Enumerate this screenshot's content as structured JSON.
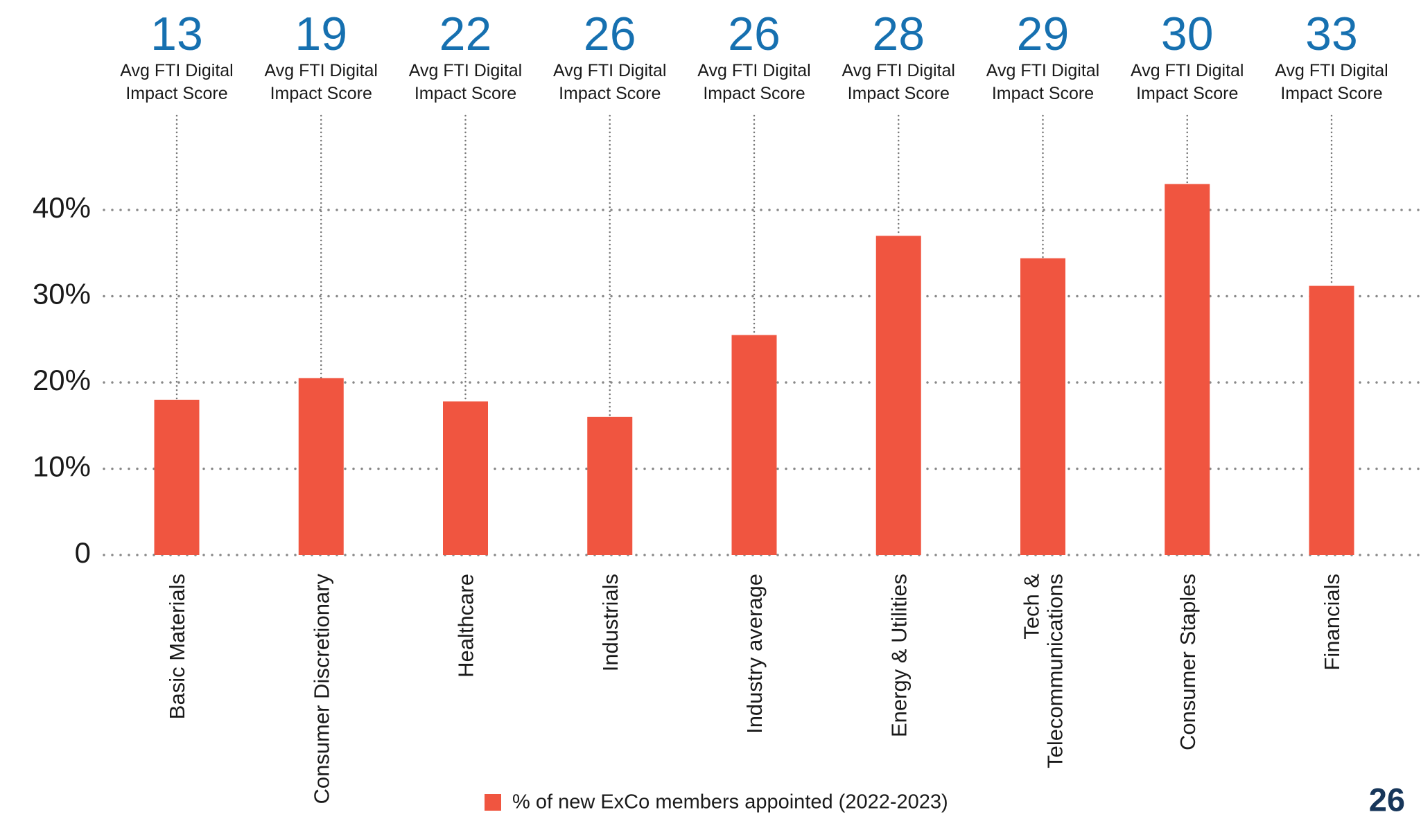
{
  "chart_data": {
    "type": "bar",
    "categories": [
      "Basic Materials",
      "Consumer Discretionary",
      "Healthcare",
      "Industrials",
      "Industry average",
      "Energy & Utilities",
      "Tech &\nTelecommunications",
      "Consumer Staples",
      "Financials"
    ],
    "values": [
      18,
      20.5,
      17.8,
      16,
      25.5,
      37,
      34.4,
      43,
      31.2
    ],
    "scores": [
      13,
      19,
      22,
      26,
      26,
      28,
      29,
      30,
      33
    ],
    "score_label": [
      "Avg FTI Digital",
      "Impact Score"
    ],
    "series_name": "% of new ExCo members appointed (2022-2023)",
    "color": "#f05540",
    "ylim": [
      0,
      40
    ],
    "yticks": [
      {
        "value": 0,
        "label": "0"
      },
      {
        "value": 10,
        "label": "10%"
      },
      {
        "value": 20,
        "label": "20%"
      },
      {
        "value": 30,
        "label": "30%"
      },
      {
        "value": 40,
        "label": "40%"
      }
    ],
    "grid": true,
    "page_number": "26"
  }
}
